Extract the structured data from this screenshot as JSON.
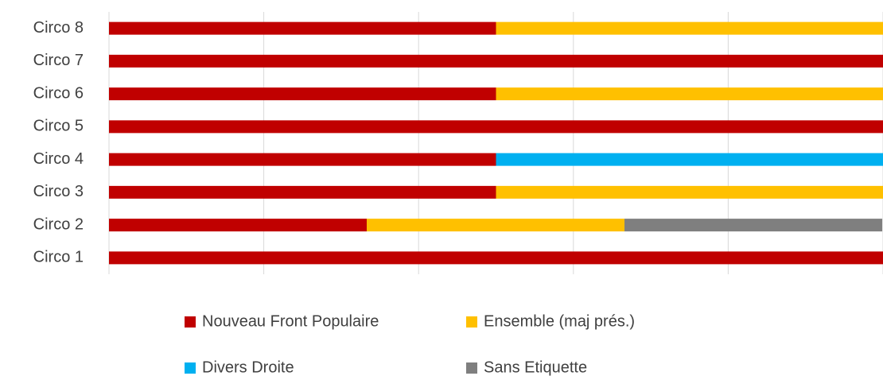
{
  "chart_data": {
    "type": "stacked-bar-horizontal",
    "categories": [
      "Circo 1",
      "Circo 2",
      "Circo 3",
      "Circo 4",
      "Circo 5",
      "Circo 6",
      "Circo 7",
      "Circo 8"
    ],
    "series": [
      {
        "name": "Nouveau Front Populaire",
        "color": "#c00000",
        "values": [
          100,
          33.3,
          50,
          50,
          100,
          50,
          100,
          50
        ]
      },
      {
        "name": "Ensemble (maj prés.)",
        "color": "#ffc000",
        "values": [
          null,
          33.3,
          50,
          null,
          null,
          50,
          null,
          50
        ]
      },
      {
        "name": "Divers Droite",
        "color": "#00b0f0",
        "values": [
          null,
          null,
          null,
          50,
          null,
          null,
          null,
          null
        ]
      },
      {
        "name": "Sans Etiquette",
        "color": "#7f7f7f",
        "values": [
          null,
          33.3,
          null,
          null,
          null,
          null,
          null,
          null
        ]
      }
    ],
    "xlim": [
      0,
      100
    ],
    "xticks": [
      0,
      20,
      40,
      60,
      80,
      100
    ],
    "grid": true,
    "legend": "bottom"
  }
}
